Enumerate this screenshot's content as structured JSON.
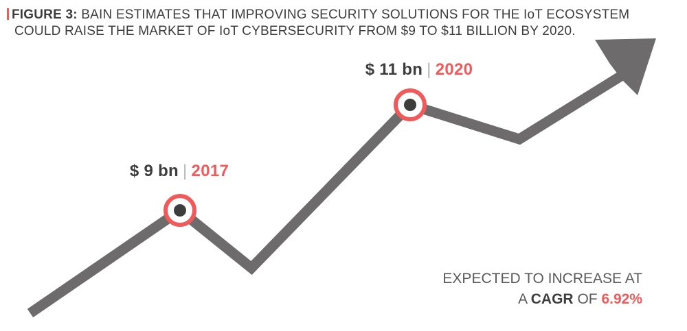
{
  "header": {
    "figure_label": "FIGURE 3:",
    "title_line1": "BAIN ESTIMATES THAT IMPROVING SECURITY SOLUTIONS FOR THE IoT ECOSYSTEM",
    "title_line2": "COULD RAISE THE MARKET OF IoT CYBERSECURITY FROM $9 TO $11 BILLION BY 2020."
  },
  "chart_data": {
    "type": "line",
    "title": "",
    "xlabel": "",
    "ylabel": "",
    "points": [
      {
        "value_label": "$ 9 bn",
        "separator": "|",
        "year": "2017",
        "value": 9
      },
      {
        "value_label": "$ 11 bn",
        "separator": "|",
        "year": "2020",
        "value": 11
      }
    ]
  },
  "note": {
    "line1": "EXPECTED TO INCREASE AT",
    "line2_prefix": "A ",
    "line2_bold": "CAGR",
    "line2_mid": " OF ",
    "line2_accent": "6.92%"
  },
  "colors": {
    "line": "#6d6b6b",
    "accent": "#f15a5a",
    "dot": "#3d3d3d",
    "text": "#3d3d3d"
  }
}
